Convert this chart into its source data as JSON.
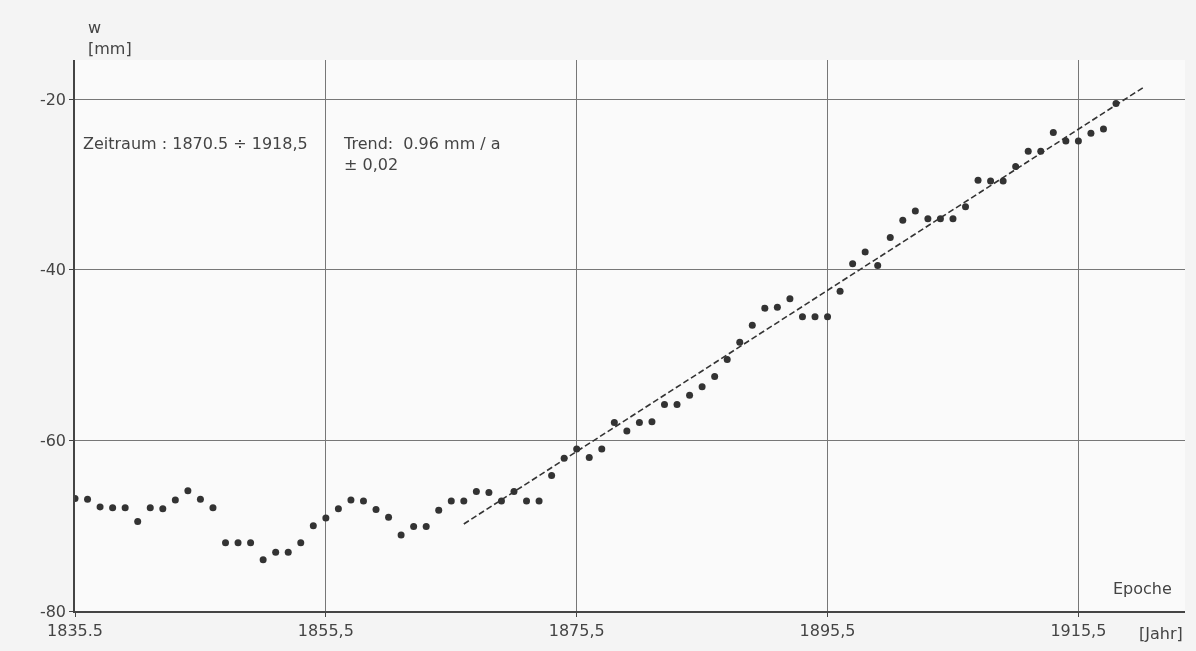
{
  "chart_data": {
    "type": "scatter",
    "xlabel": "Epoche",
    "ylabel": "w\n[mm]",
    "annotations": [
      "Zeitraum : 1870.5 ÷ 1918,5",
      "Trend:  0.96 mm / a\n± 0,02",
      "[Jahr]"
    ],
    "xlim": [
      1835.5,
      1924
    ],
    "ylim": [
      -80,
      -15.4
    ],
    "xticks": [
      {
        "value": 1835.5,
        "label": "1835.5"
      },
      {
        "value": 1855.5,
        "label": "1855,5"
      },
      {
        "value": 1875.5,
        "label": "1875,5"
      },
      {
        "value": 1895.5,
        "label": "1895,5"
      },
      {
        "value": 1915.5,
        "label": "1915,5"
      }
    ],
    "yticks": [
      -80,
      -60,
      -40,
      -20
    ],
    "grid": true,
    "marker": "circle",
    "series": [
      {
        "color": "#333333",
        "x": [
          1835.5,
          1836.5,
          1837.5,
          1838.5,
          1839.5,
          1840.5,
          1841.5,
          1842.5,
          1843.5,
          1844.5,
          1845.5,
          1846.5,
          1847.5,
          1848.5,
          1849.5,
          1850.5,
          1851.5,
          1852.5,
          1853.5,
          1854.5,
          1855.5,
          1856.5,
          1857.5,
          1858.5,
          1859.5,
          1860.5,
          1861.5,
          1862.5,
          1863.5,
          1864.5,
          1865.5,
          1866.5,
          1867.5,
          1868.5,
          1869.5,
          1870.5,
          1871.5,
          1872.5,
          1873.5,
          1874.5,
          1875.5,
          1876.5,
          1877.5,
          1878.5,
          1879.5,
          1880.5,
          1881.5,
          1882.5,
          1883.5,
          1884.5,
          1885.5,
          1886.5,
          1887.5,
          1888.5,
          1889.5,
          1890.5,
          1891.5,
          1892.5,
          1893.5,
          1894.5,
          1895.5,
          1896.5,
          1897.5,
          1898.5,
          1899.5,
          1900.5,
          1901.5,
          1902.5,
          1903.5,
          1904.5,
          1905.5,
          1906.5,
          1907.5,
          1908.5,
          1909.5,
          1910.5,
          1911.5,
          1912.5,
          1913.5,
          1914.5,
          1915.5,
          1916.5,
          1917.5,
          1918.5
        ],
        "values": [
          -66.8,
          -66.9,
          -67.8,
          -67.9,
          -67.9,
          -69.5,
          -67.9,
          -68.0,
          -67.0,
          -65.9,
          -66.9,
          -67.9,
          -72.0,
          -72.0,
          -72.0,
          -74.0,
          -73.1,
          -73.1,
          -72.0,
          -70.0,
          -69.1,
          -68.0,
          -67.0,
          -67.1,
          -68.1,
          -69.0,
          -71.1,
          -70.1,
          -70.1,
          -68.2,
          -67.1,
          -67.1,
          -66.0,
          -66.1,
          -67.1,
          -66.0,
          -67.1,
          -67.1,
          -64.1,
          -62.1,
          -61.0,
          -62.0,
          -61.0,
          -57.9,
          -58.9,
          -57.9,
          -57.8,
          -55.8,
          -55.8,
          -54.7,
          -53.7,
          -52.5,
          -50.5,
          -48.5,
          -46.5,
          -44.5,
          -44.4,
          -43.4,
          -45.5,
          -45.5,
          -45.5,
          -42.5,
          -39.3,
          -37.9,
          -39.5,
          -36.2,
          -34.2,
          -33.1,
          -34.0,
          -34.0,
          -34.0,
          -32.6,
          -29.5,
          -29.6,
          -29.6,
          -27.9,
          -26.1,
          -26.1,
          -23.9,
          -24.9,
          -24.9,
          -24.0,
          -23.5,
          -20.5
        ]
      },
      {
        "type": "line",
        "color": "#333333",
        "line_style": "dashed",
        "marker": "none",
        "x": [
          1866.5,
          1920.7
        ],
        "values": [
          -69.8,
          -18.6
        ]
      }
    ]
  }
}
